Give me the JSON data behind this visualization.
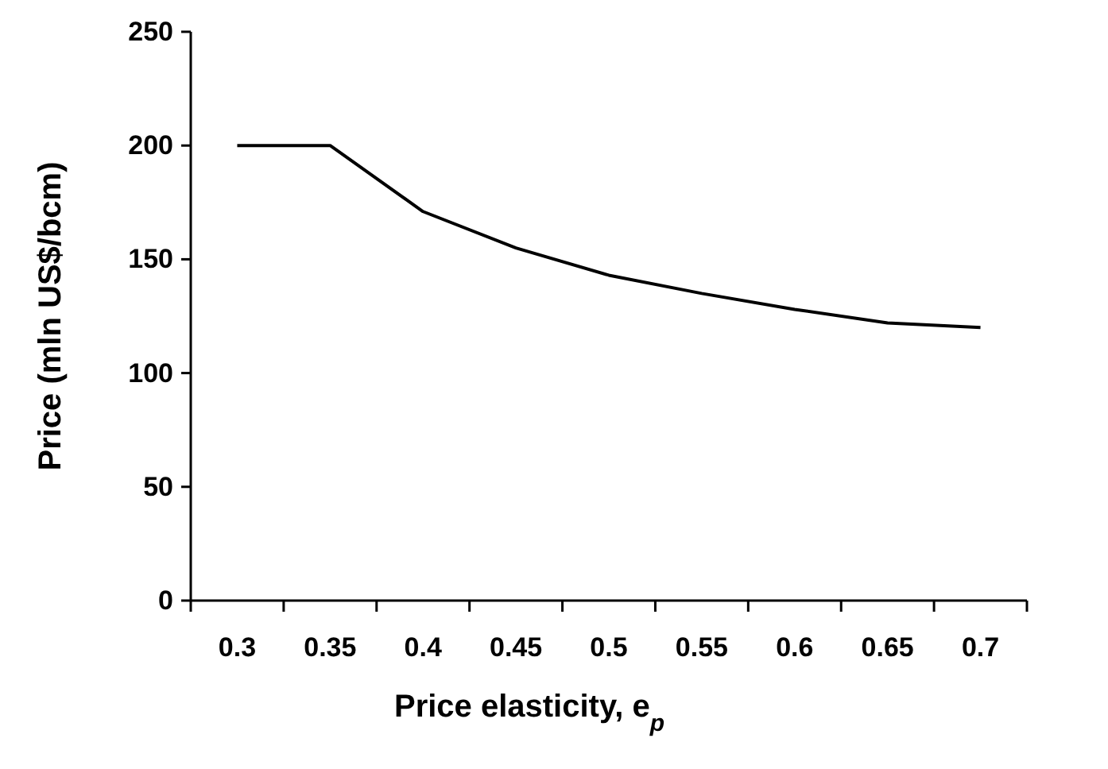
{
  "chart_data": {
    "type": "line",
    "xlabel": "Price elasticity, e$_{p}$",
    "ylabel": "Price (mln US$/bcm)",
    "categories": [
      "0.3",
      "0.35",
      "0.4",
      "0.45",
      "0.5",
      "0.55",
      "0.6",
      "0.65",
      "0.7"
    ],
    "series": [
      {
        "color": "#000000",
        "values": [
          200,
          200,
          171,
          155,
          143,
          135,
          128,
          122,
          120
        ]
      }
    ],
    "ylim": [
      0,
      250
    ],
    "yticks": [
      0,
      50,
      100,
      150,
      200,
      250
    ],
    "grid": false,
    "marker": "none",
    "line_style": "solid"
  }
}
